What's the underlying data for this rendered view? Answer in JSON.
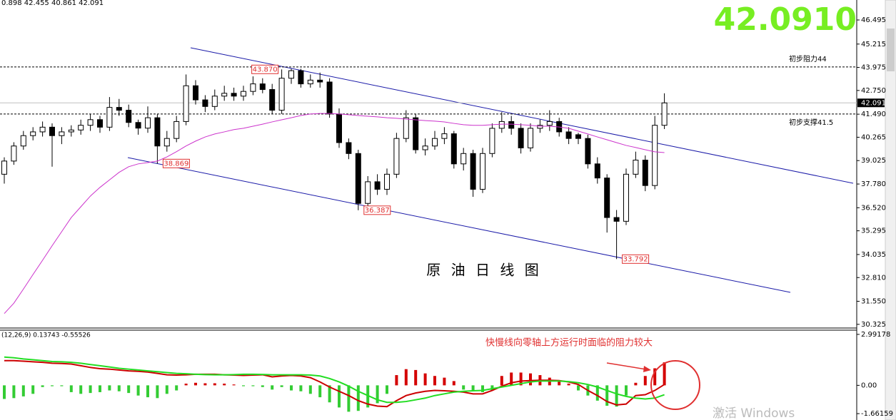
{
  "chart_data": [
    {
      "type": "candlestick",
      "header": "0.898 42.455 40.861 42.091",
      "price_display": "42.0910",
      "title": "原 油 日 线 图",
      "up_color": "#ffffff",
      "down_color": "#000000",
      "open": [
        38.3,
        39.0,
        39.8,
        40.35,
        40.55,
        40.8,
        40.35,
        40.55,
        40.65,
        40.9,
        41.2,
        40.8,
        41.85,
        41.7,
        41.05,
        40.75,
        41.3,
        39.8,
        40.2,
        41.1,
        43.0,
        42.25,
        41.9,
        42.45,
        42.6,
        42.45,
        42.7,
        43.1,
        42.8,
        41.7,
        43.4,
        43.8,
        43.1,
        43.3,
        43.2,
        41.5,
        39.98,
        39.4,
        36.75,
        37.9,
        37.5,
        38.3,
        40.2,
        41.3,
        39.6,
        39.8,
        40.2,
        40.45,
        38.85,
        39.4,
        37.5,
        39.4,
        40.74,
        41.1,
        40.74,
        39.7,
        40.74,
        40.9,
        41.1,
        40.55,
        40.4,
        40.2,
        38.85,
        38.1,
        36.0,
        35.8,
        38.3,
        39.05,
        37.7,
        40.9
      ],
      "high": [
        39.2,
        40.0,
        40.6,
        40.8,
        41.1,
        41.0,
        40.8,
        40.9,
        41.2,
        41.5,
        41.4,
        42.4,
        42.3,
        42.0,
        41.2,
        41.9,
        41.5,
        40.6,
        41.4,
        43.6,
        43.3,
        42.5,
        42.8,
        43.0,
        42.9,
        43.0,
        43.5,
        43.4,
        43.1,
        43.87,
        43.9,
        43.9,
        43.6,
        43.7,
        43.4,
        41.8,
        40.2,
        39.6,
        38.2,
        38.3,
        38.6,
        40.5,
        41.7,
        41.5,
        40.2,
        40.6,
        40.8,
        40.6,
        39.7,
        39.6,
        39.7,
        41.0,
        41.6,
        41.4,
        41.0,
        41.0,
        41.2,
        41.7,
        41.3,
        40.8,
        40.5,
        40.4,
        39.2,
        38.3,
        36.4,
        38.6,
        39.5,
        39.3,
        41.4,
        42.6
      ],
      "low": [
        37.8,
        38.8,
        39.6,
        40.1,
        40.3,
        38.7,
        39.9,
        40.3,
        40.4,
        40.6,
        40.5,
        40.6,
        41.4,
        40.8,
        40.4,
        40.5,
        38.869,
        39.5,
        40.0,
        40.9,
        42.0,
        41.6,
        41.7,
        42.2,
        42.2,
        42.2,
        42.5,
        42.6,
        41.5,
        41.5,
        43.1,
        42.9,
        42.9,
        42.9,
        41.3,
        39.7,
        39.1,
        36.387,
        36.5,
        37.2,
        37.2,
        38.1,
        40.0,
        39.4,
        39.3,
        39.6,
        39.9,
        38.6,
        38.5,
        37.1,
        37.3,
        39.2,
        40.5,
        40.4,
        39.4,
        39.5,
        40.5,
        40.6,
        40.3,
        39.9,
        39.9,
        38.6,
        37.8,
        35.2,
        33.792,
        35.6,
        38.1,
        37.4,
        37.5,
        40.7
      ],
      "close": [
        39.0,
        39.8,
        40.35,
        40.55,
        40.8,
        40.35,
        40.55,
        40.65,
        40.9,
        41.2,
        40.8,
        41.85,
        41.7,
        41.05,
        40.75,
        41.3,
        39.8,
        40.2,
        41.1,
        43.0,
        42.25,
        41.9,
        42.45,
        42.6,
        42.45,
        42.7,
        43.1,
        42.8,
        41.7,
        43.4,
        43.8,
        43.1,
        43.3,
        43.2,
        41.5,
        39.98,
        39.4,
        36.75,
        37.9,
        37.5,
        38.3,
        40.2,
        41.3,
        39.6,
        39.8,
        40.2,
        40.45,
        38.85,
        39.4,
        37.5,
        39.4,
        40.74,
        41.1,
        40.74,
        39.7,
        40.74,
        40.9,
        41.1,
        40.55,
        40.2,
        40.2,
        38.85,
        38.1,
        36.0,
        35.8,
        38.3,
        39.05,
        37.7,
        40.9,
        42.09
      ],
      "ma": {
        "color": "#cc33cc",
        "values": [
          30.9,
          31.45,
          32.2,
          32.97,
          33.73,
          34.5,
          35.25,
          36.0,
          36.57,
          37.14,
          37.6,
          38.0,
          38.4,
          38.7,
          38.85,
          38.92,
          39.0,
          39.22,
          39.5,
          39.8,
          40.06,
          40.28,
          40.44,
          40.55,
          40.67,
          40.74,
          40.85,
          40.96,
          41.08,
          41.19,
          41.3,
          41.42,
          41.5,
          41.53,
          41.53,
          41.5,
          41.46,
          41.42,
          41.38,
          41.35,
          41.3,
          41.27,
          41.23,
          41.19,
          41.15,
          41.12,
          41.08,
          41.0,
          40.93,
          40.9,
          40.9,
          40.93,
          40.96,
          40.96,
          40.93,
          40.9,
          40.85,
          40.85,
          40.81,
          40.74,
          40.59,
          40.44,
          40.28,
          40.13,
          39.98,
          39.83,
          39.72,
          39.6,
          39.49,
          39.45
        ]
      },
      "price_labels": [
        {
          "value": 43.87,
          "label": "43.870"
        },
        {
          "value": 38.869,
          "label": "38.869"
        },
        {
          "value": 36.387,
          "label": "36.387"
        },
        {
          "value": 33.792,
          "label": "33.792"
        }
      ],
      "levels": [
        {
          "value": 44.0,
          "label": "初步阻力44"
        },
        {
          "value": 41.5,
          "label": "初步支撑41.5"
        }
      ],
      "current_price": 42.091,
      "ylim": [
        30.13,
        47.556
      ],
      "yticks": [
        46.495,
        45.215,
        43.975,
        {
          "value": 42.75,
          "label": "42.750"
        },
        {
          "value": 41.49,
          "label": "41.490"
        },
        40.265,
        39.025,
        {
          "value": 37.78,
          "label": "37.780"
        },
        {
          "value": 36.52,
          "label": "36.520"
        },
        35.295,
        34.035,
        {
          "value": 32.81,
          "label": "32.810"
        },
        {
          "value": 31.55,
          "label": "31.550"
        },
        30.325
      ]
    },
    {
      "type": "macd",
      "label": "(12,26,9) 0.13743 -0.55526",
      "annotation": "快慢线向零轴上方运行时面临的阻力较大",
      "histogram": {
        "up_color": "#d40000",
        "down_color": "#33cc33",
        "values": [
          -0.8,
          -0.75,
          -0.65,
          -0.5,
          -0.1,
          -0.05,
          -0.05,
          -0.4,
          -0.5,
          -0.45,
          -0.4,
          -0.3,
          -0.35,
          -0.45,
          -0.6,
          -0.7,
          -0.75,
          -0.5,
          -0.3,
          0.1,
          0.15,
          0.12,
          0.12,
          0.1,
          0.05,
          -0.05,
          -0.05,
          -0.1,
          -0.25,
          -0.1,
          -0.3,
          -0.35,
          -0.5,
          -0.7,
          -1.0,
          -1.3,
          -1.55,
          -1.5,
          -1.3,
          -1.05,
          -0.5,
          0.6,
          0.95,
          0.9,
          0.7,
          0.55,
          0.45,
          0.25,
          -0.25,
          -0.35,
          -0.4,
          -0.3,
          0.55,
          0.75,
          0.75,
          0.7,
          0.6,
          0.45,
          0.3,
          0.1,
          -0.3,
          -0.6,
          -0.9,
          -1.2,
          -1.25,
          -0.6,
          0.15,
          0.55,
          1.0,
          1.35
        ]
      },
      "series": [
        {
          "color": "#cc0000",
          "values": [
            1.45,
            1.45,
            1.42,
            1.38,
            1.35,
            1.3,
            1.28,
            1.25,
            1.15,
            1.05,
            0.98,
            0.95,
            0.9,
            0.85,
            0.82,
            0.78,
            0.7,
            0.62,
            0.6,
            0.62,
            0.65,
            0.65,
            0.65,
            0.62,
            0.6,
            0.58,
            0.6,
            0.62,
            0.5,
            0.55,
            0.58,
            0.55,
            0.45,
            0.2,
            -0.1,
            -0.35,
            -0.6,
            -0.9,
            -1.1,
            -1.22,
            -1.25,
            -0.9,
            -0.6,
            -0.45,
            -0.35,
            -0.3,
            -0.32,
            -0.35,
            -0.4,
            -0.5,
            -0.5,
            -0.3,
            -0.05,
            0.15,
            0.25,
            0.28,
            0.3,
            0.3,
            0.28,
            0.2,
            0.05,
            -0.3,
            -0.6,
            -0.95,
            -1.15,
            -1.1,
            -0.6,
            -0.55,
            -0.3,
            0.05
          ]
        },
        {
          "color": "#22dd22",
          "values": [
            1.66,
            1.62,
            1.55,
            1.5,
            1.45,
            1.4,
            1.38,
            1.35,
            1.3,
            1.22,
            1.15,
            1.08,
            1.0,
            0.95,
            0.9,
            0.85,
            0.8,
            0.75,
            0.7,
            0.68,
            0.65,
            0.63,
            0.62,
            0.62,
            0.63,
            0.65,
            0.65,
            0.64,
            0.62,
            0.62,
            0.62,
            0.62,
            0.6,
            0.55,
            0.4,
            0.2,
            -0.05,
            -0.35,
            -0.6,
            -0.85,
            -1.0,
            -1.0,
            -0.95,
            -0.85,
            -0.75,
            -0.6,
            -0.5,
            -0.4,
            -0.35,
            -0.32,
            -0.3,
            -0.2,
            -0.1,
            0.0,
            0.1,
            0.2,
            0.25,
            0.25,
            0.25,
            0.22,
            0.15,
            0.05,
            -0.1,
            -0.3,
            -0.5,
            -0.65,
            -0.75,
            -0.8,
            -0.75,
            -0.55
          ]
        }
      ],
      "ylim": [
        -2.036,
        3.24
      ],
      "yticks": [
        2.99178,
        {
          "value": 0,
          "label": "0.00"
        },
        -1.66159
      ]
    }
  ],
  "watermark": "激活 Windows"
}
